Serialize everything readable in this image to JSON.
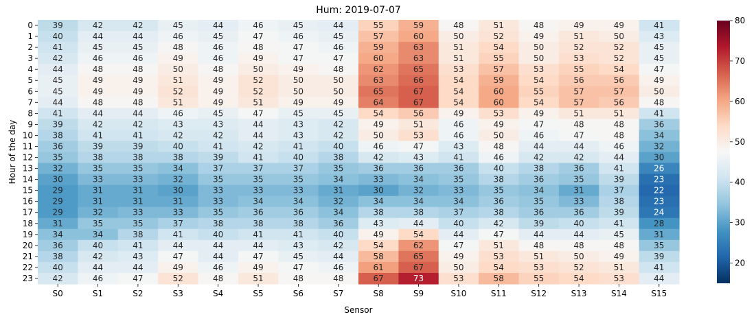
{
  "chart_data": {
    "type": "heatmap",
    "title": "Hum: 2019-07-07",
    "xlabel": "Sensor",
    "ylabel": "Hour of the day",
    "x_categories": [
      "S0",
      "S1",
      "S2",
      "S3",
      "S4",
      "S5",
      "S6",
      "S7",
      "S8",
      "S9",
      "S10",
      "S11",
      "S12",
      "S13",
      "S14",
      "S15"
    ],
    "y_categories": [
      "0",
      "1",
      "2",
      "3",
      "4",
      "5",
      "6",
      "7",
      "8",
      "9",
      "10",
      "11",
      "12",
      "13",
      "14",
      "15",
      "16",
      "17",
      "18",
      "19",
      "20",
      "21",
      "22",
      "23"
    ],
    "values": [
      [
        39,
        42,
        42,
        45,
        44,
        46,
        45,
        44,
        55,
        59,
        48,
        51,
        48,
        49,
        49,
        41
      ],
      [
        40,
        44,
        44,
        46,
        45,
        47,
        46,
        45,
        57,
        60,
        50,
        52,
        49,
        51,
        50,
        43
      ],
      [
        41,
        45,
        45,
        48,
        46,
        48,
        47,
        46,
        59,
        63,
        51,
        54,
        50,
        52,
        52,
        45
      ],
      [
        42,
        46,
        46,
        49,
        46,
        49,
        47,
        47,
        60,
        63,
        51,
        55,
        50,
        53,
        52,
        45
      ],
      [
        44,
        48,
        48,
        50,
        48,
        50,
        49,
        48,
        62,
        65,
        53,
        57,
        53,
        55,
        54,
        47
      ],
      [
        45,
        49,
        49,
        51,
        49,
        52,
        50,
        50,
        63,
        66,
        54,
        59,
        54,
        56,
        56,
        49
      ],
      [
        45,
        49,
        49,
        52,
        49,
        52,
        50,
        50,
        65,
        67,
        54,
        60,
        55,
        57,
        57,
        50
      ],
      [
        44,
        48,
        48,
        51,
        49,
        51,
        49,
        49,
        64,
        67,
        54,
        60,
        54,
        57,
        56,
        48
      ],
      [
        41,
        44,
        44,
        46,
        45,
        47,
        45,
        45,
        54,
        56,
        49,
        53,
        49,
        51,
        51,
        41
      ],
      [
        39,
        42,
        42,
        43,
        43,
        44,
        43,
        42,
        49,
        51,
        46,
        49,
        47,
        48,
        48,
        36
      ],
      [
        38,
        41,
        41,
        42,
        42,
        44,
        43,
        42,
        50,
        53,
        46,
        50,
        46,
        47,
        48,
        34
      ],
      [
        36,
        39,
        39,
        40,
        41,
        42,
        41,
        40,
        46,
        47,
        43,
        48,
        44,
        44,
        46,
        32
      ],
      [
        35,
        38,
        38,
        38,
        39,
        41,
        40,
        38,
        42,
        43,
        41,
        46,
        42,
        42,
        44,
        30
      ],
      [
        32,
        35,
        35,
        34,
        37,
        37,
        37,
        35,
        36,
        36,
        36,
        40,
        38,
        36,
        41,
        26
      ],
      [
        30,
        33,
        33,
        32,
        35,
        35,
        35,
        34,
        33,
        34,
        35,
        38,
        36,
        35,
        39,
        23
      ],
      [
        29,
        31,
        31,
        30,
        33,
        33,
        33,
        31,
        30,
        32,
        33,
        35,
        34,
        31,
        37,
        22
      ],
      [
        29,
        31,
        31,
        31,
        33,
        34,
        34,
        32,
        34,
        34,
        34,
        36,
        35,
        33,
        38,
        23
      ],
      [
        29,
        32,
        33,
        33,
        35,
        36,
        36,
        34,
        38,
        38,
        37,
        38,
        36,
        36,
        39,
        24
      ],
      [
        31,
        35,
        35,
        37,
        38,
        38,
        38,
        36,
        43,
        44,
        40,
        42,
        39,
        40,
        41,
        28
      ],
      [
        34,
        34,
        38,
        41,
        40,
        41,
        41,
        40,
        49,
        54,
        44,
        47,
        44,
        44,
        45,
        31
      ],
      [
        36,
        40,
        41,
        44,
        44,
        44,
        43,
        42,
        54,
        62,
        47,
        51,
        48,
        48,
        48,
        35
      ],
      [
        38,
        42,
        43,
        47,
        44,
        47,
        45,
        44,
        58,
        65,
        49,
        53,
        51,
        50,
        49,
        39
      ],
      [
        40,
        44,
        44,
        49,
        46,
        49,
        47,
        46,
        61,
        67,
        50,
        54,
        53,
        52,
        51,
        41
      ],
      [
        42,
        46,
        47,
        52,
        48,
        51,
        48,
        48,
        67,
        73,
        53,
        58,
        55,
        54,
        53,
        44
      ]
    ],
    "vmin": 15,
    "vmax": 80,
    "colormap": "RdBu_r",
    "colorbar_ticks": [
      20,
      30,
      40,
      50,
      60,
      70,
      80
    ],
    "annotations": true,
    "grid": false,
    "legend": "colorbar-right"
  }
}
